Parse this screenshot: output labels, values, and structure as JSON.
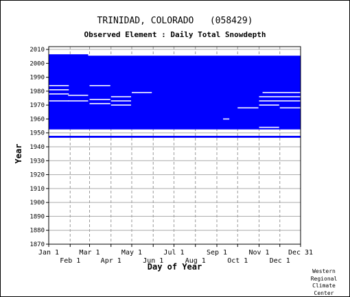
{
  "chart_data": {
    "type": "heatmap",
    "title": "TRINIDAD, COLORADO   (058429)",
    "subtitle": "Observed Element : Daily Total Snowdepth",
    "xlabel": "Day of Year",
    "ylabel": "Year",
    "xlim": [
      1,
      365
    ],
    "ylim": [
      1870,
      2012
    ],
    "y_ticks": [
      1870,
      1880,
      1890,
      1900,
      1910,
      1920,
      1930,
      1940,
      1950,
      1960,
      1970,
      1980,
      1990,
      2000,
      2010
    ],
    "x_ticks": [
      {
        "day": 1,
        "label": "Jan 1"
      },
      {
        "day": 32,
        "label": "Feb 1"
      },
      {
        "day": 60,
        "label": "Mar 1"
      },
      {
        "day": 91,
        "label": "Apr 1"
      },
      {
        "day": 121,
        "label": "May 1"
      },
      {
        "day": 152,
        "label": "Jun 1"
      },
      {
        "day": 182,
        "label": "Jul 1"
      },
      {
        "day": 213,
        "label": "Aug 1"
      },
      {
        "day": 244,
        "label": "Sep 1"
      },
      {
        "day": 274,
        "label": "Oct 1"
      },
      {
        "day": 305,
        "label": "Nov 1"
      },
      {
        "day": 335,
        "label": "Dec 1"
      },
      {
        "day": 365,
        "label": "Dec 31"
      }
    ],
    "grid": true,
    "color": "#0000ff",
    "coverage": [
      {
        "start_year": 1953,
        "end_year": 2005,
        "start_day": 1,
        "end_day": 365
      },
      {
        "start_year": 2005,
        "end_year": 2006,
        "start_day": 1,
        "end_day": 58
      },
      {
        "start_year": 1947,
        "end_year": 1947.4,
        "start_day": 1,
        "end_day": 365
      }
    ],
    "missing_periods": [
      {
        "year": 1984,
        "start_day": 1,
        "end_day": 30
      },
      {
        "year": 1981,
        "start_day": 1,
        "end_day": 30
      },
      {
        "year": 1978,
        "start_day": 1,
        "end_day": 30
      },
      {
        "year": 1973,
        "start_day": 1,
        "end_day": 30
      },
      {
        "year": 1977,
        "start_day": 29,
        "end_day": 58
      },
      {
        "year": 1973,
        "start_day": 29,
        "end_day": 58
      },
      {
        "year": 1984,
        "start_day": 60,
        "end_day": 90
      },
      {
        "year": 1974,
        "start_day": 60,
        "end_day": 90
      },
      {
        "year": 1971,
        "start_day": 60,
        "end_day": 90
      },
      {
        "year": 1976,
        "start_day": 91,
        "end_day": 120
      },
      {
        "year": 1973,
        "start_day": 91,
        "end_day": 120
      },
      {
        "year": 1970,
        "start_day": 91,
        "end_day": 120
      },
      {
        "year": 1979,
        "start_day": 121,
        "end_day": 150
      },
      {
        "year": 1968,
        "start_day": 274,
        "end_day": 304
      },
      {
        "year": 1960,
        "start_day": 253,
        "end_day": 262
      },
      {
        "year": 1979,
        "start_day": 310,
        "end_day": 365
      },
      {
        "year": 1976,
        "start_day": 305,
        "end_day": 365
      },
      {
        "year": 1973,
        "start_day": 305,
        "end_day": 365
      },
      {
        "year": 1970,
        "start_day": 305,
        "end_day": 334
      },
      {
        "year": 1968,
        "start_day": 335,
        "end_day": 365
      },
      {
        "year": 1954,
        "start_day": 305,
        "end_day": 334
      }
    ],
    "credit": [
      "Western",
      "Regional",
      "Climate",
      "Center"
    ]
  }
}
